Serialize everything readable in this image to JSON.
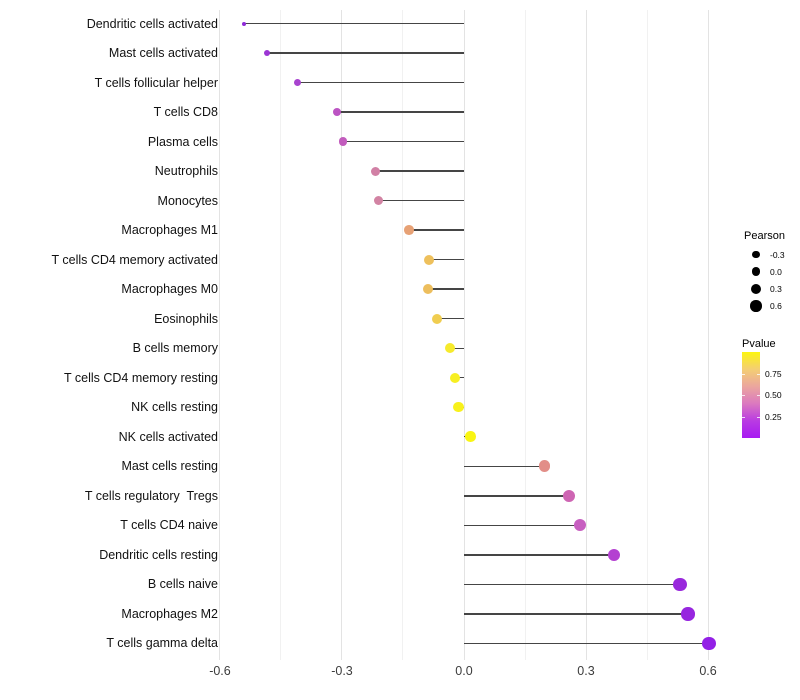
{
  "chart_data": {
    "type": "scatter",
    "subtype": "lollipop",
    "title": "",
    "xlabel": "",
    "ylabel": "",
    "x_ticks": [
      {
        "label": "-0.6",
        "value": -0.6
      },
      {
        "label": "-0.3",
        "value": -0.3
      },
      {
        "label": "0.0",
        "value": 0.0
      },
      {
        "label": "0.3",
        "value": 0.3
      },
      {
        "label": "0.6",
        "value": 0.6
      }
    ],
    "x_minor_ticks": [
      -0.45,
      -0.15,
      0.15,
      0.45
    ],
    "xlim": [
      -0.65,
      0.63
    ],
    "grid": "major+minor",
    "legend_position": "right",
    "points": [
      {
        "label": "Dendritic cells activated",
        "pearson": -0.54,
        "color": "#8F2BD8"
      },
      {
        "label": "Mast cells activated",
        "pearson": -0.485,
        "color": "#9C35D4"
      },
      {
        "label": "T cells follicular helper",
        "pearson": -0.41,
        "color": "#A843CF"
      },
      {
        "label": "T cells CD8",
        "pearson": -0.313,
        "color": "#BC54C3"
      },
      {
        "label": "Plasma cells",
        "pearson": -0.298,
        "color": "#C25CBD"
      },
      {
        "label": "Neutrophils",
        "pearson": -0.217,
        "color": "#D180A5"
      },
      {
        "label": "Monocytes",
        "pearson": -0.211,
        "color": "#D283A3"
      },
      {
        "label": "Macrophages M1",
        "pearson": -0.136,
        "color": "#E7A175"
      },
      {
        "label": "T cells CD4 memory activated",
        "pearson": -0.086,
        "color": "#EEC05C"
      },
      {
        "label": "Macrophages M0",
        "pearson": -0.088,
        "color": "#EDBE5D"
      },
      {
        "label": "Eosinophils",
        "pearson": -0.066,
        "color": "#F0CD50"
      },
      {
        "label": "B cells memory",
        "pearson": -0.035,
        "color": "#F6EA2C"
      },
      {
        "label": "T cells CD4 memory resting",
        "pearson": -0.022,
        "color": "#F7EF22"
      },
      {
        "label": "NK cells resting",
        "pearson": -0.014,
        "color": "#F8F11C"
      },
      {
        "label": "NK cells activated",
        "pearson": 0.016,
        "color": "#F9F513"
      },
      {
        "label": "Mast cells resting",
        "pearson": 0.198,
        "color": "#E28E88"
      },
      {
        "label": "T cells regulatory  Tregs",
        "pearson": 0.259,
        "color": "#CE65B3"
      },
      {
        "label": "T cells CD4 naive",
        "pearson": 0.285,
        "color": "#C75FC0"
      },
      {
        "label": "Dendritic cells resting",
        "pearson": 0.369,
        "color": "#B440D1"
      },
      {
        "label": "B cells naive",
        "pearson": 0.531,
        "color": "#9929DC"
      },
      {
        "label": "Macrophages M2",
        "pearson": 0.551,
        "color": "#9726DF"
      },
      {
        "label": "T cells gamma delta",
        "pearson": 0.602,
        "color": "#9320E6"
      }
    ],
    "legends": {
      "size": {
        "title": "Pearson",
        "dot_color": "#000000",
        "entries": [
          {
            "label": "-0.3",
            "value": -0.3
          },
          {
            "label": "0.0",
            "value": 0.0
          },
          {
            "label": "0.3",
            "value": 0.3
          },
          {
            "label": "0.6",
            "value": 0.6
          }
        ]
      },
      "color": {
        "title": "Pvalue",
        "gradient_top_to_bottom": [
          "#FCF510",
          "#F4CE73",
          "#EBA69E",
          "#DB79BF",
          "#B93BE2",
          "#A81AF2"
        ],
        "ticks": [
          {
            "label": "0.75",
            "value": 0.75
          },
          {
            "label": "0.50",
            "value": 0.5
          },
          {
            "label": "0.25",
            "value": 0.25
          }
        ]
      }
    }
  }
}
